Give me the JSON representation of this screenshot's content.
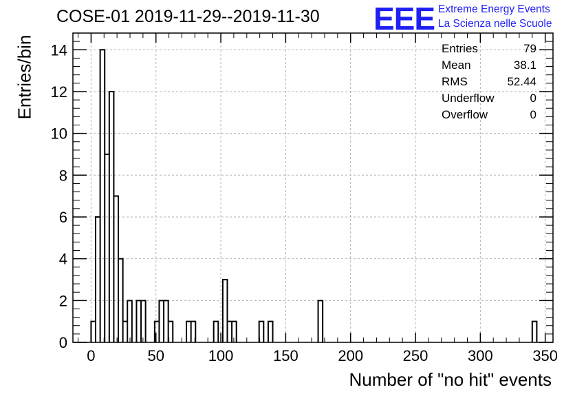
{
  "chart_data": {
    "type": "bar",
    "title": "COSE-01 2019-11-29--2019-11-30",
    "xlabel": "Number of \"no hit\" events",
    "ylabel": "Entries/bin",
    "xlim": [
      -14,
      356
    ],
    "ylim": [
      0,
      14.8
    ],
    "x_ticks": [
      0,
      50,
      100,
      150,
      200,
      250,
      300,
      350
    ],
    "y_ticks": [
      0,
      2,
      4,
      6,
      8,
      10,
      12,
      14
    ],
    "grid": true,
    "bin_width": 3.5,
    "bins": [
      {
        "x": 0,
        "y": 1
      },
      {
        "x": 3.5,
        "y": 6
      },
      {
        "x": 7,
        "y": 14
      },
      {
        "x": 10.5,
        "y": 9
      },
      {
        "x": 14,
        "y": 12
      },
      {
        "x": 17.5,
        "y": 7
      },
      {
        "x": 21,
        "y": 4
      },
      {
        "x": 24.5,
        "y": 1
      },
      {
        "x": 28,
        "y": 2
      },
      {
        "x": 35,
        "y": 2
      },
      {
        "x": 38.5,
        "y": 2
      },
      {
        "x": 49,
        "y": 1
      },
      {
        "x": 52.5,
        "y": 2
      },
      {
        "x": 56,
        "y": 2
      },
      {
        "x": 59.5,
        "y": 1
      },
      {
        "x": 73.5,
        "y": 1
      },
      {
        "x": 77,
        "y": 1
      },
      {
        "x": 94.5,
        "y": 1
      },
      {
        "x": 101.5,
        "y": 3
      },
      {
        "x": 105,
        "y": 1
      },
      {
        "x": 108.5,
        "y": 1
      },
      {
        "x": 129.5,
        "y": 1
      },
      {
        "x": 136.5,
        "y": 1
      },
      {
        "x": 175,
        "y": 2
      },
      {
        "x": 340,
        "y": 1
      }
    ],
    "stats": {
      "entries": "79",
      "mean": "38.1",
      "rms": "52.44",
      "underflow": "0",
      "overflow": "0"
    }
  },
  "stats_labels": {
    "entries": "Entries",
    "mean": "Mean",
    "rms": "RMS",
    "underflow": "Underflow",
    "overflow": "Overflow"
  },
  "logo": {
    "mark": "EEE",
    "line1": "Extreme Energy Events",
    "line2": "La Scienza nelle Scuole"
  },
  "colors": {
    "logo": "#1f1ff5",
    "line": "#000000",
    "grid": "#b0b0b0"
  }
}
